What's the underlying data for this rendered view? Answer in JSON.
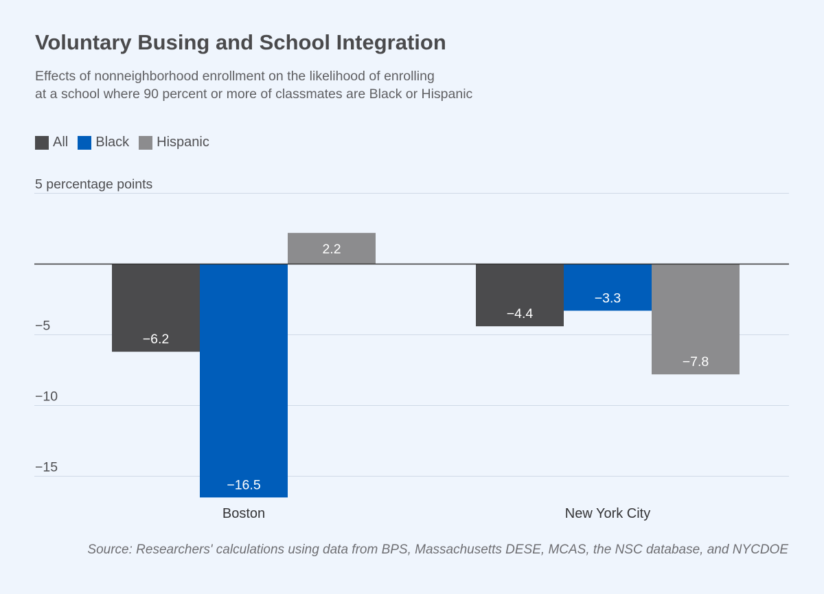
{
  "chart_data": {
    "type": "bar",
    "title": "Voluntary Busing and School Integration",
    "subtitle_lines": [
      "Effects of nonneighborhood enrollment on the likelihood of enrolling",
      "at a school where 90 percent or more of classmates are Black or Hispanic"
    ],
    "categories": [
      "Boston",
      "New York City"
    ],
    "series": [
      {
        "name": "All",
        "color": "#4b4b4d",
        "values": [
          -6.2,
          -4.4
        ],
        "labels": [
          "−6.2",
          "−4.4"
        ]
      },
      {
        "name": "Black",
        "color": "#005dba",
        "values": [
          -16.5,
          -3.3
        ],
        "labels": [
          "−16.5",
          "−3.3"
        ]
      },
      {
        "name": "Hispanic",
        "color": "#8c8c8e",
        "values": [
          2.2,
          -7.8
        ],
        "labels": [
          "2.2",
          "−7.8"
        ]
      }
    ],
    "yticks": [
      5,
      -5,
      -10,
      -15
    ],
    "ytick_labels": [
      "5 percentage points",
      "−5",
      "−10",
      "−15"
    ],
    "ylim": [
      -16.5,
      5
    ],
    "zero_line_color": "#333333",
    "grid_color": "#cfd9e6",
    "legend_position": "top-left",
    "source": "Source: Researchers' calculations using data from BPS, Massachusetts DESE, MCAS, the NSC database, and NYCDOE"
  }
}
